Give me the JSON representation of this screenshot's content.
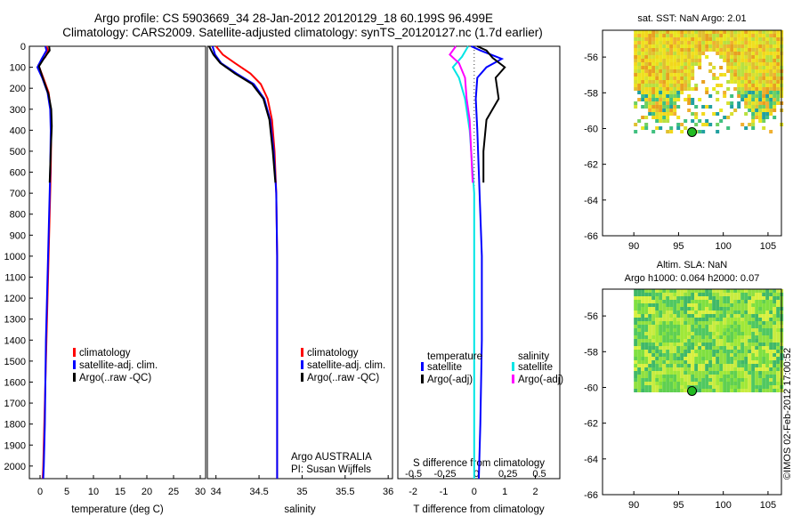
{
  "titles": {
    "line1": "Argo profile: CS 5903669_34 28-Jan-2012 20120129_18 60.199S 96.499E",
    "line2": "Climatology: CARS2009. Satellite-adjusted climatology: synTS_20120127.nc (1.7d earlier)"
  },
  "watermark": "©IMOS 02-Feb-2012 17:00:52",
  "colors": {
    "climatology": "#ff0000",
    "satellite": "#0000ff",
    "argo": "#000000",
    "sal_satellite": "#00e5e5",
    "sal_argo": "#ff00ff",
    "marker": "#22bb22"
  },
  "chart_data": [
    {
      "id": "temperature",
      "type": "line",
      "xlabel": "temperature (deg C)",
      "ylabel": "",
      "xlim": [
        -2,
        31
      ],
      "ylim": [
        2060,
        0
      ],
      "xticks": [
        "0",
        "5",
        "10",
        "15",
        "20",
        "25",
        "30"
      ],
      "xtick_values": [
        0,
        5,
        10,
        15,
        20,
        25,
        30
      ],
      "yticks": [
        "0",
        "100",
        "200",
        "300",
        "400",
        "500",
        "600",
        "700",
        "800",
        "900",
        "1000",
        "1100",
        "1200",
        "1300",
        "1400",
        "1500",
        "1600",
        "1700",
        "1800",
        "1900",
        "2000"
      ],
      "legend": [
        "climatology",
        "satellite-adj. clim.",
        "Argo(..raw -QC)"
      ],
      "series": [
        {
          "name": "climatology",
          "color": "red",
          "points": [
            [
              1.2,
              0
            ],
            [
              1.5,
              20
            ],
            [
              1.0,
              50
            ],
            [
              -0.3,
              90
            ],
            [
              0.6,
              150
            ],
            [
              1.6,
              220
            ],
            [
              2.0,
              300
            ],
            [
              2.1,
              400
            ],
            [
              2.0,
              600
            ],
            [
              1.8,
              800
            ],
            [
              1.6,
              1000
            ],
            [
              1.4,
              1200
            ],
            [
              1.2,
              1400
            ],
            [
              1.0,
              1600
            ],
            [
              0.8,
              1800
            ],
            [
              0.6,
              2000
            ],
            [
              0.5,
              2060
            ]
          ]
        },
        {
          "name": "satellite-adj. clim.",
          "color": "blue",
          "points": [
            [
              1.0,
              0
            ],
            [
              1.2,
              20
            ],
            [
              0.3,
              60
            ],
            [
              -0.5,
              100
            ],
            [
              0.4,
              150
            ],
            [
              1.4,
              220
            ],
            [
              1.9,
              300
            ],
            [
              2.0,
              400
            ],
            [
              1.9,
              600
            ],
            [
              1.7,
              800
            ],
            [
              1.5,
              1000
            ],
            [
              1.3,
              1200
            ],
            [
              1.1,
              1400
            ],
            [
              1.0,
              1600
            ],
            [
              0.9,
              1800
            ],
            [
              0.7,
              2000
            ],
            [
              0.6,
              2060
            ]
          ]
        },
        {
          "name": "Argo(..raw -QC)",
          "color": "black",
          "points": [
            [
              1.7,
              0
            ],
            [
              1.8,
              20
            ],
            [
              0.8,
              55
            ],
            [
              -0.2,
              95
            ],
            [
              0.5,
              150
            ],
            [
              1.6,
              230
            ],
            [
              2.1,
              300
            ],
            [
              2.2,
              380
            ],
            [
              2.0,
              500
            ],
            [
              1.8,
              650
            ]
          ]
        }
      ]
    },
    {
      "id": "salinity",
      "type": "line",
      "xlabel": "salinity",
      "ylabel": "",
      "xlim": [
        33.9,
        36.05
      ],
      "ylim": [
        2060,
        0
      ],
      "xticks": [
        "34",
        "34.5",
        "35",
        "35.5",
        "36"
      ],
      "xtick_values": [
        34,
        34.5,
        35,
        35.5,
        36
      ],
      "legend": [
        "climatology",
        "satellite-adj. clim.",
        "Argo(..raw -QC)"
      ],
      "annotation": [
        "Argo AUSTRALIA",
        "PI: Susan Wijffels"
      ],
      "series": [
        {
          "name": "climatology",
          "color": "red",
          "points": [
            [
              34.0,
              0
            ],
            [
              34.08,
              40
            ],
            [
              34.22,
              80
            ],
            [
              34.4,
              130
            ],
            [
              34.52,
              180
            ],
            [
              34.6,
              250
            ],
            [
              34.65,
              350
            ],
            [
              34.68,
              500
            ],
            [
              34.7,
              700
            ],
            [
              34.71,
              1000
            ],
            [
              34.71,
              1400
            ],
            [
              34.71,
              2000
            ],
            [
              34.71,
              2060
            ]
          ]
        },
        {
          "name": "satellite-adj. clim.",
          "color": "blue",
          "points": [
            [
              33.96,
              0
            ],
            [
              33.99,
              40
            ],
            [
              34.06,
              80
            ],
            [
              34.24,
              130
            ],
            [
              34.44,
              180
            ],
            [
              34.56,
              250
            ],
            [
              34.63,
              350
            ],
            [
              34.67,
              500
            ],
            [
              34.7,
              700
            ],
            [
              34.71,
              1000
            ],
            [
              34.71,
              1400
            ],
            [
              34.71,
              2000
            ],
            [
              34.71,
              2060
            ]
          ]
        },
        {
          "name": "Argo(..raw -QC)",
          "color": "black",
          "points": [
            [
              33.92,
              0
            ],
            [
              33.97,
              40
            ],
            [
              34.05,
              80
            ],
            [
              34.22,
              130
            ],
            [
              34.42,
              180
            ],
            [
              34.55,
              250
            ],
            [
              34.62,
              350
            ],
            [
              34.66,
              500
            ],
            [
              34.69,
              650
            ]
          ]
        }
      ]
    },
    {
      "id": "differences",
      "type": "line",
      "xlabel": "T difference from climatology",
      "xlabel_top": "S difference from climatology",
      "xlim": [
        -2.5,
        2.8
      ],
      "ylim": [
        2060,
        0
      ],
      "xticks": [
        "-2",
        "-1",
        "0",
        "1",
        "2"
      ],
      "xtick_values": [
        -2,
        -1,
        0,
        1,
        2
      ],
      "xticks_top": [
        "-0.5",
        "-0.25",
        "0",
        "0.25",
        "0.5"
      ],
      "xtick_top_values": [
        -0.5,
        -0.25,
        0,
        0.25,
        0.5
      ],
      "legend_headers": [
        "temperature",
        "salinity"
      ],
      "legend": [
        "satellite",
        "Argo(-adj)",
        "satellite",
        "Argo(-adj)"
      ],
      "series": [
        {
          "name": "temperature satellite",
          "color": "blue",
          "points": [
            [
              -0.1,
              0
            ],
            [
              0.2,
              20
            ],
            [
              0.9,
              60
            ],
            [
              0.4,
              100
            ],
            [
              0.1,
              150
            ],
            [
              0.05,
              250
            ],
            [
              0.1,
              400
            ],
            [
              0.15,
              600
            ],
            [
              0.2,
              800
            ],
            [
              0.25,
              1000
            ],
            [
              0.25,
              1400
            ],
            [
              0.2,
              1800
            ],
            [
              0.15,
              2060
            ]
          ]
        },
        {
          "name": "temperature Argo(-adj)",
          "color": "black",
          "points": [
            [
              0.1,
              0
            ],
            [
              0.4,
              20
            ],
            [
              0.6,
              55
            ],
            [
              1.0,
              100
            ],
            [
              0.7,
              150
            ],
            [
              0.8,
              250
            ],
            [
              0.4,
              350
            ],
            [
              0.3,
              500
            ],
            [
              0.3,
              650
            ]
          ]
        },
        {
          "name": "salinity satellite",
          "color": "cyan",
          "points": [
            [
              -0.2,
              0
            ],
            [
              -0.4,
              50
            ],
            [
              -0.7,
              100
            ],
            [
              -0.5,
              150
            ],
            [
              -0.3,
              250
            ],
            [
              -0.15,
              400
            ],
            [
              0.0,
              700
            ],
            [
              0.0,
              1000
            ],
            [
              0.0,
              1400
            ],
            [
              0.0,
              2060
            ]
          ]
        },
        {
          "name": "salinity Argo(-adj)",
          "color": "magenta",
          "points": [
            [
              -0.6,
              0
            ],
            [
              -0.8,
              40
            ],
            [
              -0.5,
              80
            ],
            [
              -0.3,
              150
            ],
            [
              -0.25,
              250
            ],
            [
              -0.15,
              350
            ],
            [
              -0.1,
              500
            ],
            [
              -0.05,
              650
            ]
          ]
        }
      ]
    },
    {
      "id": "sst_map",
      "type": "heatmap",
      "title": "sat. SST: NaN Argo: 2.01",
      "xlim": [
        86.5,
        106.5
      ],
      "ylim": [
        -66,
        -54.5
      ],
      "xticks": [
        "90",
        "95",
        "100",
        "105"
      ],
      "xtick_values": [
        90,
        95,
        100,
        105
      ],
      "yticks": [
        "-56",
        "-58",
        "-60",
        "-62",
        "-64",
        "-66"
      ],
      "ytick_values": [
        -56,
        -58,
        -60,
        -62,
        -64,
        -66
      ],
      "marker": [
        96.5,
        -60.2
      ]
    },
    {
      "id": "sla_map",
      "type": "heatmap",
      "title": "Altim. SLA: NaN",
      "subtitle": "Argo h1000: 0.064 h2000: 0.07",
      "xlim": [
        86.5,
        106.5
      ],
      "ylim": [
        -66,
        -54.5
      ],
      "xticks": [
        "90",
        "95",
        "100",
        "105"
      ],
      "xtick_values": [
        90,
        95,
        100,
        105
      ],
      "yticks": [
        "-56",
        "-58",
        "-60",
        "-62",
        "-64",
        "-66"
      ],
      "ytick_values": [
        -56,
        -58,
        -60,
        -62,
        -64,
        -66
      ],
      "marker": [
        96.5,
        -60.2
      ]
    }
  ]
}
